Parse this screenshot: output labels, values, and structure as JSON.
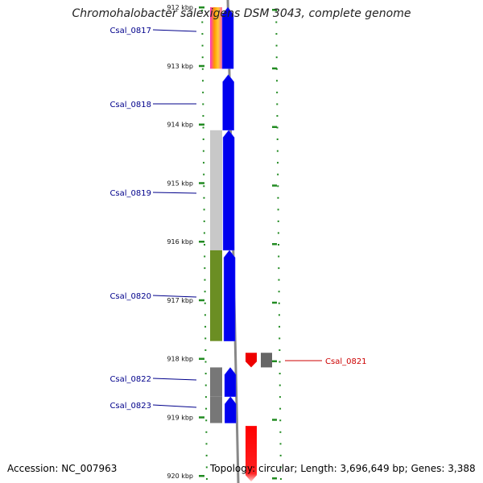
{
  "title": "Chromohalobacter salexigens DSM 3043, complete genome",
  "accession": "Accession: NC_007963",
  "summary": "Topology: circular; Length: 3,696,649 bp; Genes: 3,388",
  "scale": {
    "ticks": [
      {
        "label": "912 kbp",
        "kbp": 912
      },
      {
        "label": "913 kbp",
        "kbp": 913
      },
      {
        "label": "914 kbp",
        "kbp": 914
      },
      {
        "label": "915 kbp",
        "kbp": 915
      },
      {
        "label": "916 kbp",
        "kbp": 916
      },
      {
        "label": "917 kbp",
        "kbp": 917
      },
      {
        "label": "918 kbp",
        "kbp": 918
      },
      {
        "label": "919 kbp",
        "kbp": 919
      },
      {
        "label": "920 kbp",
        "kbp": 920
      }
    ]
  },
  "genes": [
    {
      "label": "Csal_0817",
      "start": 912.0,
      "end": 913.05,
      "strand": "+",
      "color": "#0000ee",
      "cog_color": "#ff3399"
    },
    {
      "label": "Csal_0818",
      "start": 913.15,
      "end": 914.1,
      "strand": "+",
      "color": "#0000ee",
      "cog_color": null
    },
    {
      "label": "Csal_0819",
      "start": 914.1,
      "end": 916.15,
      "strand": "+",
      "color": "#0000ee",
      "cog_color": "#c8c8c8"
    },
    {
      "label": "Csal_0820",
      "start": 916.15,
      "end": 917.7,
      "strand": "+",
      "color": "#0000ee",
      "cog_color": "#6b8e23"
    },
    {
      "label": "Csal_0821",
      "start": 917.9,
      "end": 918.15,
      "strand": "-",
      "color": "#ee0000",
      "cog_color": "#666666"
    },
    {
      "label": "Csal_0822",
      "start": 918.15,
      "end": 918.65,
      "strand": "+",
      "color": "#0000ee",
      "cog_color": "#777777"
    },
    {
      "label": "Csal_0823",
      "start": 918.65,
      "end": 919.1,
      "strand": "+",
      "color": "#0000ee",
      "cog_color": "#777777"
    },
    {
      "label": "",
      "start": 919.15,
      "end": 920.1,
      "strand": "-",
      "color": "#ee0000",
      "cog_color": null
    }
  ],
  "colors": {
    "forward_strand": "#0000ee",
    "reverse_strand": "#ee0000",
    "backbone": "#888888",
    "tick": "#228b22",
    "forward_label": "#00008b",
    "reverse_label": "#cc0000"
  }
}
